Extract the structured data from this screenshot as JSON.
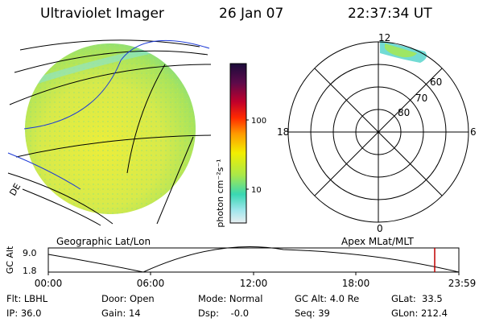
{
  "header": {
    "instrument": "Ultraviolet Imager",
    "date": "26 Jan 07",
    "time": "22:37:34 UT"
  },
  "colorbar": {
    "unit_label": "photon cm⁻²s⁻¹",
    "ticks": [
      "100",
      "10"
    ],
    "scale": "log",
    "colors": [
      "#1b0b3a",
      "#5c0a4a",
      "#c1002b",
      "#ff2a00",
      "#ff9a00",
      "#f2ee00",
      "#a9e84a",
      "#39d7b3",
      "#9fe6ec",
      "#e8eef0"
    ]
  },
  "geo_map": {
    "caption": "Geographic Lat/Lon",
    "edge_label": "DE",
    "disk_color": "#cfe75e"
  },
  "polar_plot": {
    "caption": "Apex MLat/MLT",
    "mlt_labels": {
      "top": "12",
      "left": "18",
      "right": "6",
      "bottom": "0"
    },
    "lat_labels": [
      "60",
      "70",
      "80"
    ]
  },
  "altitude_plot": {
    "ylabel": "GC Alt",
    "yticks": [
      "9.0",
      "1.8"
    ],
    "xticks": [
      "00:00",
      "06:00",
      "12:00",
      "18:00",
      "23:59"
    ],
    "marker_color": "#c00000"
  },
  "footer": {
    "flt": "Flt: LBHL",
    "ip": "IP: 36.0",
    "door": "Door: Open",
    "gain": "Gain: 14",
    "mode": "Mode: Normal",
    "dsp": "Dsp:    -0.0",
    "gc_alt": "GC Alt: 4.0 Re",
    "seq": "Seq: 39",
    "glat": "GLat:  33.5",
    "glon": "GLon: 212.4"
  }
}
